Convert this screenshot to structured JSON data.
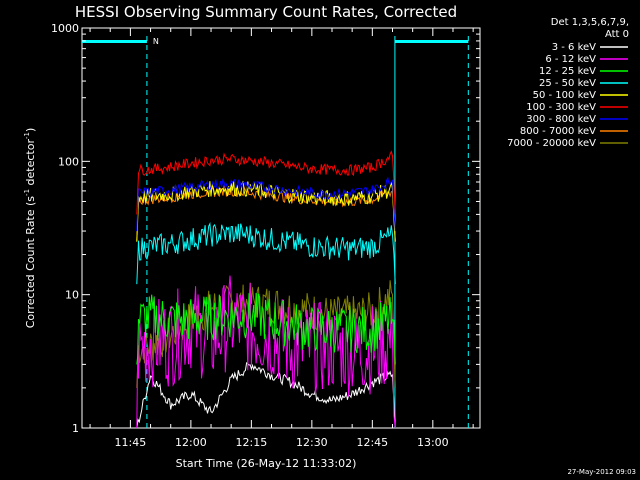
{
  "chart_data": {
    "type": "line",
    "title": "HESSI Observing Summary Count Rates, Corrected",
    "xlabel": "Start Time (26-May-12 11:33:02)",
    "ylabel": "Corrected Count Rate (s",
    "ylabel_sup": "-1",
    "ylabel_mid": " detector",
    "ylabel_sup2": "-1",
    "ylabel_end": ")",
    "y_scale": "log",
    "ylim": [
      1,
      1000
    ],
    "y_ticks": [
      {
        "value": 1,
        "label": "1"
      },
      {
        "value": 10,
        "label": "10"
      },
      {
        "value": 100,
        "label": "100"
      },
      {
        "value": 1000,
        "label": "1000"
      }
    ],
    "x_ticks": [
      {
        "minute": 45,
        "label": "11:45"
      },
      {
        "minute": 60,
        "label": "12:00"
      },
      {
        "minute": 75,
        "label": "12:15"
      },
      {
        "minute": 90,
        "label": "12:30"
      },
      {
        "minute": 105,
        "label": "12:45"
      },
      {
        "minute": 120,
        "label": "13:00"
      }
    ],
    "x_range_minutes_after_11h": [
      33.0,
      131.7
    ],
    "data_span_minutes": [
      46.6,
      110.7
    ],
    "legend_header": [
      "Det 1,3,5,6,7,9,",
      "Att 0"
    ],
    "legend_placement": "top-right",
    "night_marks": [
      {
        "start": 33.0,
        "end": 49.1,
        "label": "N"
      },
      {
        "start": 110.6,
        "end": 128.8,
        "label": ""
      }
    ],
    "dashed_lines_minutes": [
      49.1,
      128.8
    ],
    "series": [
      {
        "name": "3 - 6 keV",
        "color": "#ffffff",
        "values": [
          [
            46.6,
            1.0
          ],
          [
            50,
            2.5
          ],
          [
            55,
            1.5
          ],
          [
            60,
            1.8
          ],
          [
            65,
            1.3
          ],
          [
            70,
            2.3
          ],
          [
            75,
            3.0
          ],
          [
            80,
            2.5
          ],
          [
            85,
            2.2
          ],
          [
            90,
            1.8
          ],
          [
            95,
            1.6
          ],
          [
            100,
            1.8
          ],
          [
            105,
            2.2
          ],
          [
            110,
            2.5
          ],
          [
            110.7,
            1.0
          ]
        ]
      },
      {
        "name": "6 - 12 keV",
        "color": "#ff00ff",
        "values": [
          [
            46.6,
            1.0
          ],
          [
            47,
            4.0
          ],
          [
            50,
            4.5
          ],
          [
            55,
            4.5
          ],
          [
            60,
            6.0
          ],
          [
            65,
            4.5
          ],
          [
            70,
            6.5
          ],
          [
            75,
            5.5
          ],
          [
            80,
            5.0
          ],
          [
            85,
            4.0
          ],
          [
            90,
            4.0
          ],
          [
            95,
            4.0
          ],
          [
            100,
            3.8
          ],
          [
            105,
            4.0
          ],
          [
            110,
            4.5
          ],
          [
            110.7,
            1.0
          ]
        ]
      },
      {
        "name": "12 - 25 keV",
        "color": "#00ff00",
        "values": [
          [
            46.6,
            3.0
          ],
          [
            47,
            6.5
          ],
          [
            50,
            6.8
          ],
          [
            55,
            6.5
          ],
          [
            60,
            6.5
          ],
          [
            65,
            6.8
          ],
          [
            70,
            7.0
          ],
          [
            75,
            7.0
          ],
          [
            80,
            6.5
          ],
          [
            85,
            6.0
          ],
          [
            90,
            5.5
          ],
          [
            95,
            5.5
          ],
          [
            100,
            5.5
          ],
          [
            105,
            5.5
          ],
          [
            110,
            6.5
          ],
          [
            110.7,
            3.0
          ]
        ]
      },
      {
        "name": "25 - 50 keV",
        "color": "#00ffff",
        "values": [
          [
            46.6,
            12.0
          ],
          [
            47,
            22.0
          ],
          [
            50,
            23.0
          ],
          [
            55,
            24.0
          ],
          [
            60,
            26.0
          ],
          [
            65,
            28.0
          ],
          [
            70,
            29.0
          ],
          [
            75,
            28.0
          ],
          [
            80,
            26.0
          ],
          [
            85,
            24.5
          ],
          [
            90,
            23.0
          ],
          [
            95,
            22.5
          ],
          [
            100,
            22.0
          ],
          [
            105,
            23.0
          ],
          [
            110,
            28.0
          ],
          [
            110.7,
            12.0
          ]
        ]
      },
      {
        "name": "50 - 100 keV",
        "color": "#ffff00",
        "values": [
          [
            46.6,
            25.0
          ],
          [
            47,
            54.0
          ],
          [
            50,
            55.0
          ],
          [
            55,
            57.0
          ],
          [
            60,
            60.0
          ],
          [
            65,
            62.0
          ],
          [
            70,
            63.0
          ],
          [
            75,
            62.0
          ],
          [
            80,
            59.0
          ],
          [
            85,
            56.0
          ],
          [
            90,
            54.0
          ],
          [
            95,
            53.0
          ],
          [
            100,
            53.0
          ],
          [
            105,
            55.0
          ],
          [
            110,
            62.0
          ],
          [
            110.7,
            25.0
          ]
        ]
      },
      {
        "name": "100 - 300 keV",
        "color": "#ff0000",
        "values": [
          [
            46.6,
            40.0
          ],
          [
            47,
            86.0
          ],
          [
            50,
            87.0
          ],
          [
            55,
            91.0
          ],
          [
            60,
            97.0
          ],
          [
            65,
            102.0
          ],
          [
            70,
            104.0
          ],
          [
            75,
            101.0
          ],
          [
            80,
            97.0
          ],
          [
            85,
            92.0
          ],
          [
            90,
            88.0
          ],
          [
            95,
            86.0
          ],
          [
            100,
            86.0
          ],
          [
            105,
            90.0
          ],
          [
            110,
            110.0
          ],
          [
            110.7,
            40.0
          ]
        ]
      },
      {
        "name": "300 - 800 keV",
        "color": "#0000ff",
        "values": [
          [
            46.6,
            30.0
          ],
          [
            47,
            58.0
          ],
          [
            50,
            59.0
          ],
          [
            55,
            61.0
          ],
          [
            60,
            64.0
          ],
          [
            65,
            67.0
          ],
          [
            70,
            68.0
          ],
          [
            75,
            66.0
          ],
          [
            80,
            63.0
          ],
          [
            85,
            60.0
          ],
          [
            90,
            58.0
          ],
          [
            95,
            57.0
          ],
          [
            100,
            58.0
          ],
          [
            105,
            61.0
          ],
          [
            110,
            72.0
          ],
          [
            110.7,
            30.0
          ]
        ]
      },
      {
        "name": "800 - 7000 keV",
        "color": "#ff8000",
        "values": [
          [
            46.6,
            25.0
          ],
          [
            47,
            51.0
          ],
          [
            50,
            52.0
          ],
          [
            55,
            54.0
          ],
          [
            60,
            57.0
          ],
          [
            65,
            59.0
          ],
          [
            70,
            60.0
          ],
          [
            75,
            58.0
          ],
          [
            80,
            56.0
          ],
          [
            85,
            53.0
          ],
          [
            90,
            51.0
          ],
          [
            95,
            50.0
          ],
          [
            100,
            50.0
          ],
          [
            105,
            52.0
          ],
          [
            110,
            60.0
          ],
          [
            110.7,
            25.0
          ]
        ]
      },
      {
        "name": "7000 - 20000 keV",
        "color": "#808000",
        "values": [
          [
            46.6,
            2.0
          ],
          [
            47,
            4.0
          ],
          [
            50,
            4.2
          ],
          [
            55,
            5.0
          ],
          [
            60,
            6.5
          ],
          [
            65,
            8.0
          ],
          [
            70,
            8.5
          ],
          [
            75,
            8.8
          ],
          [
            80,
            8.5
          ],
          [
            85,
            8.0
          ],
          [
            90,
            7.5
          ],
          [
            95,
            7.0
          ],
          [
            100,
            7.0
          ],
          [
            105,
            7.5
          ],
          [
            110,
            10.0
          ],
          [
            110.7,
            2.0
          ]
        ]
      }
    ],
    "timestamp": "27-May-2012 09:03"
  }
}
